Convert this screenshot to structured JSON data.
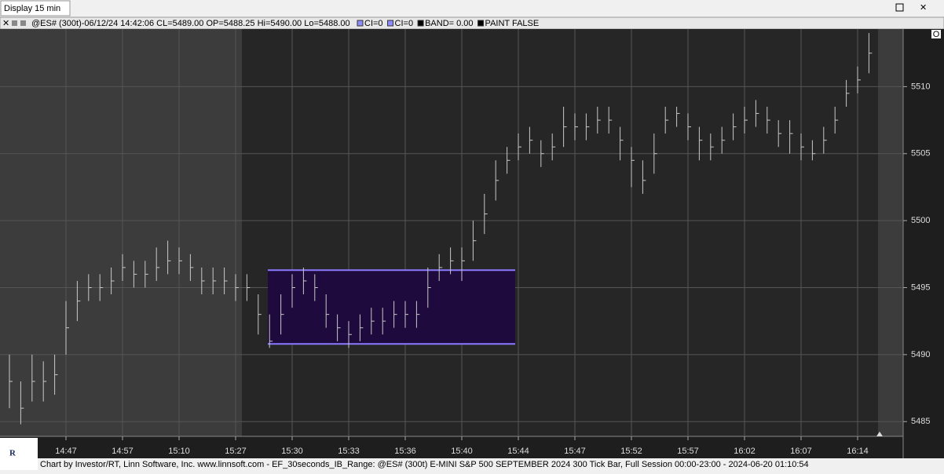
{
  "window": {
    "title": "Display 15 min"
  },
  "header": {
    "quote": "@ES# (300t)-06/12/24 14:42:06 CL=5489.00 OP=5488.25 Hi=5490.00 Lo=5488.00",
    "legend": [
      "CI=0",
      "CI=0",
      "BAND= 0.00",
      "PAINT FALSE"
    ]
  },
  "footer": "Chart by Investor/RT, Linn Software, Inc. www.linnsoft.com - EF_30seconds_IB_Range: @ES# (300t) E-MINI S&P 500 SEPTEMBER 2024 300 Tick Bar, Full Session 00:00-23:00 - 2024-06-20 01:10:54",
  "chart_data": {
    "type": "ohlc",
    "color": "#c8c8c8",
    "categories": [
      null,
      null,
      null,
      null,
      null,
      "14:47",
      null,
      null,
      null,
      null,
      "14:57",
      null,
      null,
      null,
      null,
      "15:10",
      null,
      null,
      null,
      null,
      "15:27",
      null,
      null,
      null,
      null,
      "15:30",
      null,
      null,
      null,
      null,
      "15:33",
      null,
      null,
      null,
      null,
      "15:36",
      null,
      null,
      null,
      null,
      "15:40",
      null,
      null,
      null,
      null,
      "15:44",
      null,
      null,
      null,
      null,
      "15:47",
      null,
      null,
      null,
      null,
      "15:52",
      null,
      null,
      null,
      null,
      "15:57",
      null,
      null,
      null,
      null,
      "16:02",
      null,
      null,
      null,
      null,
      "16:07",
      null,
      null,
      null,
      null,
      "16:14",
      null
    ],
    "high": [
      5490,
      5488,
      5490,
      5489.5,
      5490,
      5494,
      5495.5,
      5496,
      5496,
      5496.5,
      5497.5,
      5497,
      5497,
      5498,
      5498.5,
      5498,
      5497.5,
      5496.5,
      5496.5,
      5496.5,
      5496,
      5496,
      5494.5,
      5493,
      5494.5,
      5496,
      5496.5,
      5496,
      5494.5,
      5493,
      5492.5,
      5493,
      5493.5,
      5493.5,
      5494,
      5494,
      5494,
      5496.5,
      5497.5,
      5498,
      5498,
      5500,
      5502,
      5504.5,
      5505.5,
      5506.5,
      5507,
      5506,
      5506.5,
      5508.5,
      5508,
      5508,
      5508.5,
      5508.5,
      5507,
      5505.5,
      5504.5,
      5506.5,
      5508.5,
      5508.5,
      5508,
      5507,
      5506.5,
      5507,
      5508,
      5508.5,
      5509,
      5508.5,
      5507.5,
      5507.5,
      5506.5,
      5506,
      5507,
      5508.5,
      5510.5,
      5511.5,
      5514
    ],
    "low": [
      5486,
      5484.8,
      5486.5,
      5486.5,
      5487,
      5490,
      5492.5,
      5494,
      5494,
      5494.5,
      5495.5,
      5495,
      5495,
      5495.5,
      5496,
      5496,
      5495.5,
      5494.5,
      5494.5,
      5494.5,
      5494,
      5494,
      5491.5,
      5490.5,
      5491.5,
      5493.5,
      5494.5,
      5494,
      5492,
      5491,
      5490.5,
      5491,
      5491.5,
      5491.5,
      5492,
      5492,
      5492,
      5493.5,
      5495.5,
      5496,
      5495.5,
      5497,
      5499,
      5501.5,
      5503.5,
      5504.5,
      5505,
      5504,
      5504.5,
      5505.5,
      5506,
      5506,
      5506.5,
      5506.5,
      5504.5,
      5502.5,
      5502,
      5503.5,
      5506.5,
      5507,
      5506,
      5504.5,
      5504.5,
      5505,
      5506,
      5506.5,
      5507,
      5506.5,
      5505.5,
      5505,
      5504.5,
      5504.5,
      5505,
      5506.5,
      5508.5,
      5509.5,
      5511
    ],
    "close": [
      5488,
      5486,
      5488,
      5488,
      5488.5,
      5492,
      5494,
      5495,
      5495,
      5495.5,
      5496.5,
      5496,
      5496,
      5496.5,
      5497,
      5497,
      5496.5,
      5495.5,
      5495.5,
      5495.5,
      5495,
      5495,
      5493,
      5491,
      5493,
      5495,
      5495.5,
      5495,
      5493,
      5492,
      5491.5,
      5492,
      5492.5,
      5492.5,
      5493,
      5493,
      5493,
      5495,
      5496.5,
      5497,
      5497,
      5498.5,
      5500.5,
      5503,
      5504.5,
      5505.5,
      5506,
      5505,
      5505.5,
      5507,
      5507,
      5507,
      5507.5,
      5507.5,
      5506,
      5504.5,
      5503,
      5505,
      5507.5,
      5508,
      5507,
      5506,
      5505.5,
      5506,
      5507,
      5507.5,
      5508,
      5507.5,
      5506.5,
      5506.5,
      5505.5,
      5505,
      5506,
      5507.5,
      5509.5,
      5510.5,
      5512.5
    ],
    "band": {
      "high": 5496.3,
      "low": 5490.8,
      "color": "#1e0a3c",
      "edge": "#8a7aff"
    },
    "ylim": [
      5483.9,
      5514.3
    ],
    "yticks": [
      5485,
      5490,
      5495,
      5500,
      5505,
      5510
    ],
    "grid": true
  }
}
